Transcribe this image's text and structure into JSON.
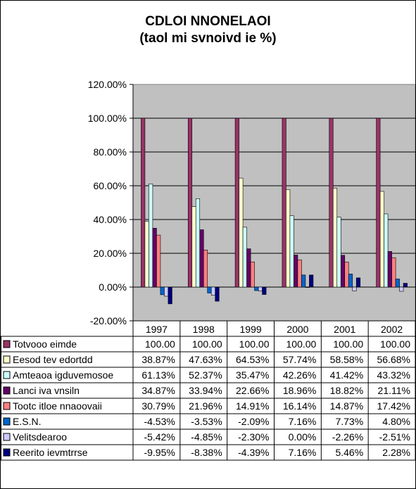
{
  "chart_data": {
    "type": "bar",
    "title": "CDLOI NNONELAOI",
    "subtitle": "(taol mi svnoivd ie %)",
    "categories": [
      "1997",
      "1998",
      "1999",
      "2000",
      "2001",
      "2002"
    ],
    "ylim": [
      -20,
      120
    ],
    "ytick_labels": [
      "120.00%",
      "100.00%",
      "80.00%",
      "60.00%",
      "40.00%",
      "20.00%",
      "0.00%",
      "-20.00%"
    ],
    "grid": "horizontal",
    "legend": "data-table-below",
    "plot_background": "#c0c0c0",
    "series": [
      {
        "name": "Totvooo eimde",
        "color": "#993366",
        "values": [
          100.0,
          100.0,
          100.0,
          100.0,
          100.0,
          100.0
        ],
        "labels": [
          "100.00",
          "100.00",
          "100.00",
          "100.00",
          "100.00",
          "100.00"
        ]
      },
      {
        "name": "Eesod tev edortdd",
        "color": "#ffffcc",
        "values": [
          38.87,
          47.63,
          64.53,
          57.74,
          58.58,
          56.68
        ],
        "labels": [
          "38.87%",
          "47.63%",
          "64.53%",
          "57.74%",
          "58.58%",
          "56.68%"
        ]
      },
      {
        "name": "Amteaoa igduvemosoe",
        "color": "#ccffff",
        "values": [
          61.13,
          52.37,
          35.47,
          42.26,
          41.42,
          43.32
        ],
        "labels": [
          "61.13%",
          "52.37%",
          "35.47%",
          "42.26%",
          "41.42%",
          "43.32%"
        ]
      },
      {
        "name": "Lanci iva vnsiln",
        "color": "#660066",
        "values": [
          34.87,
          33.94,
          22.66,
          18.96,
          18.82,
          21.11
        ],
        "labels": [
          "34.87%",
          "33.94%",
          "22.66%",
          "18.96%",
          "18.82%",
          "21.11%"
        ]
      },
      {
        "name": "Tootc itloe nnaoovaii",
        "color": "#ff8080",
        "values": [
          30.79,
          21.96,
          14.91,
          16.14,
          14.87,
          17.42
        ],
        "labels": [
          "30.79%",
          "21.96%",
          "14.91%",
          "16.14%",
          "14.87%",
          "17.42%"
        ]
      },
      {
        "name": "E.S.N.",
        "color": "#0066cc",
        "values": [
          -4.53,
          -3.53,
          -2.09,
          7.16,
          7.73,
          4.8
        ],
        "labels": [
          "-4.53%",
          "-3.53%",
          "-2.09%",
          "7.16%",
          "7.73%",
          "4.80%"
        ]
      },
      {
        "name": "Velitsdearoo",
        "color": "#ccccff",
        "values": [
          -5.42,
          -4.85,
          -2.3,
          0.0,
          -2.26,
          -2.51
        ],
        "labels": [
          "-5.42%",
          "-4.85%",
          "-2.30%",
          "0.00%",
          "-2.26%",
          "-2.51%"
        ]
      },
      {
        "name": "Reerito ievmtrrse",
        "color": "#000080",
        "values": [
          -9.95,
          -8.38,
          -4.39,
          7.16,
          5.46,
          2.28
        ],
        "labels": [
          "-9.95%",
          "-8.38%",
          "-4.39%",
          "7.16%",
          "5.46%",
          "2.28%"
        ]
      }
    ]
  }
}
